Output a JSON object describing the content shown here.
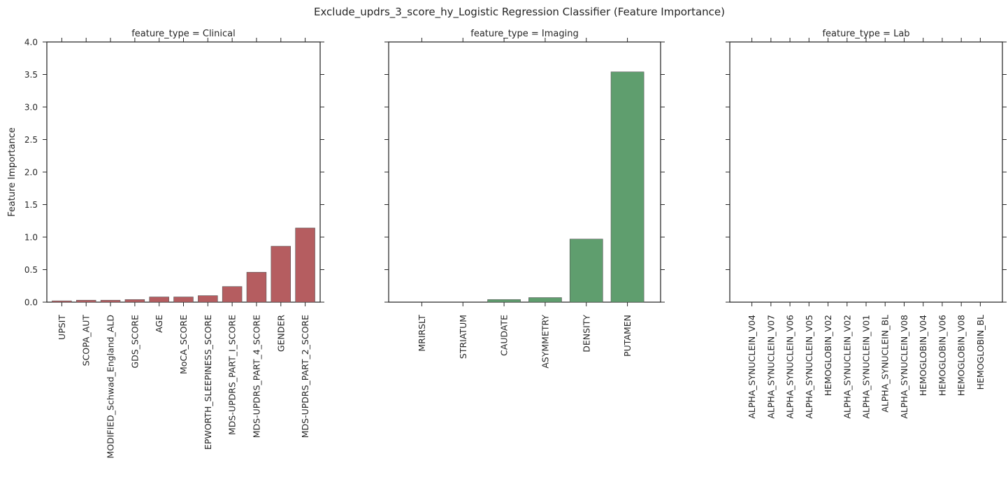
{
  "title": "Exclude_updrs_3_score_hy_Logistic Regression Classifier (Feature Importance)",
  "ylabel": "Feature Importance",
  "yticks": [
    "0.0",
    "0.5",
    "1.0",
    "1.5",
    "2.0",
    "2.5",
    "3.0",
    "3.5",
    "4.0"
  ],
  "chart_data": [
    {
      "type": "bar",
      "title": "feature_type = Clinical",
      "ylabel": "Feature Importance",
      "ylim": [
        0,
        4.0
      ],
      "color": "#b55d60",
      "categories": [
        "UPSIT",
        "SCOPA_AUT",
        "MODIFIED_Schwad_England_ALD",
        "GDS_SCORE",
        "AGE",
        "MoCA_SCORE",
        "EPWORTH_SLEEPINESS_SCORE",
        "MDS-UPDRS_PART_I_SCORE",
        "MDS-UPDRS_PART_4_SCORE",
        "GENDER",
        "MDS-UPDRS_PART_2_SCORE"
      ],
      "values": [
        0.02,
        0.03,
        0.03,
        0.04,
        0.08,
        0.08,
        0.1,
        0.24,
        0.46,
        0.86,
        1.14
      ]
    },
    {
      "type": "bar",
      "title": "feature_type = Imaging",
      "ylim": [
        0,
        4.0
      ],
      "color": "#5f9e6e",
      "categories": [
        "MRIRSLT",
        "STRIATUM",
        "CAUDATE",
        "ASYMMETRY",
        "DENSITY",
        "PUTAMEN"
      ],
      "values": [
        0.0,
        0.0,
        0.04,
        0.07,
        0.97,
        3.54
      ]
    },
    {
      "type": "bar",
      "title": "feature_type = Lab",
      "ylim": [
        0,
        4.0
      ],
      "color": "#5f6eb5",
      "categories": [
        "ALPHA_SYNUCLEIN_V04",
        "ALPHA_SYNUCLEIN_V07",
        "ALPHA_SYNUCLEIN_V06",
        "ALPHA_SYNUCLEIN_V05",
        "HEMOGLOBIN_V02",
        "ALPHA_SYNUCLEIN_V02",
        "ALPHA_SYNUCLEIN_V01",
        "ALPHA_SYNUCLEIN_BL",
        "ALPHA_SYNUCLEIN_V08",
        "HEMOGLOBIN_V04",
        "HEMOGLOBIN_V06",
        "HEMOGLOBIN_V08",
        "HEMOGLOBIN_BL"
      ],
      "values": [
        0,
        0,
        0,
        0,
        0,
        0,
        0,
        0,
        0,
        0,
        0,
        0,
        0
      ]
    }
  ]
}
